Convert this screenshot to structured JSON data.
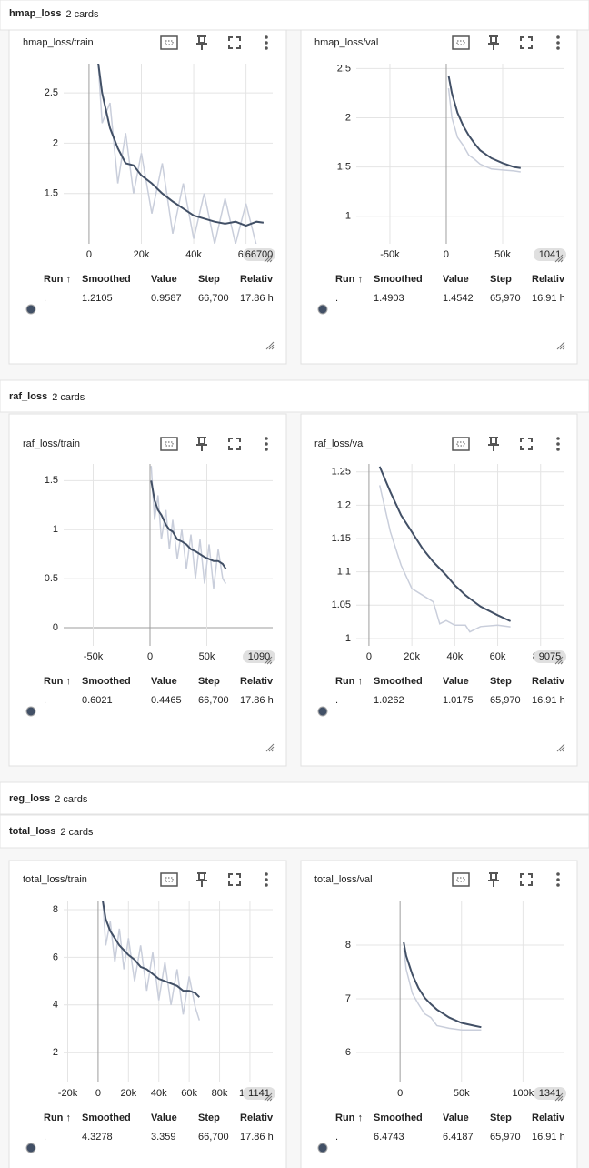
{
  "table_headers": [
    "Run ↑",
    "Smoothed",
    "Value",
    "Step",
    "Relativ"
  ],
  "sections": [
    {
      "title": "hmap_loss",
      "count": "2 cards",
      "cards": [
        {
          "title": "hmap_loss/train",
          "badge": "66700",
          "row": [
            ".",
            "1.2105",
            "0.9587",
            "66,700",
            "17.86 h"
          ],
          "chart": {
            "type": "line",
            "xlim": [
              -9700,
              70200
            ],
            "ylim": [
              1.0,
              2.79
            ],
            "xticks": [
              0,
              {
                "value": 20000,
                "label": "20k"
              },
              {
                "value": 40000,
                "label": "40k"
              },
              {
                "value": 60000,
                "label": "60k"
              }
            ],
            "yticks": [
              1.5,
              2,
              2.5
            ],
            "x": [
              3000,
              5000,
              8000,
              11000,
              14000,
              17000,
              20000,
              24000,
              28000,
              32000,
              36000,
              40000,
              44000,
              48000,
              52000,
              56000,
              60000,
              64000,
              66700
            ],
            "series": [
              {
                "color": "#c9cedb",
                "values": [
                  3.0,
                  2.2,
                  2.4,
                  1.6,
                  2.1,
                  1.5,
                  1.9,
                  1.3,
                  1.8,
                  1.1,
                  1.6,
                  1.05,
                  1.5,
                  1.0,
                  1.45,
                  1.0,
                  1.4,
                  0.98,
                  0.96
                ]
              },
              {
                "color": "#425066",
                "values": [
                  2.9,
                  2.5,
                  2.15,
                  1.95,
                  1.8,
                  1.78,
                  1.68,
                  1.6,
                  1.5,
                  1.42,
                  1.35,
                  1.28,
                  1.25,
                  1.22,
                  1.2,
                  1.22,
                  1.18,
                  1.22,
                  1.21
                ]
              }
            ]
          }
        },
        {
          "title": "hmap_loss/val",
          "badge": "1041",
          "row": [
            ".",
            "1.4903",
            "1.4542",
            "65,970",
            "16.91 h"
          ],
          "chart": {
            "type": "line",
            "xlim": [
              -79800,
              104000
            ],
            "ylim": [
              0.72,
              2.55
            ],
            "xticks": [
              {
                "value": -50000,
                "label": "-50k"
              },
              0,
              {
                "value": 50000,
                "label": "50k"
              }
            ],
            "yticks": [
              1,
              1.5,
              2,
              2.5
            ],
            "x": [
              2000,
              5000,
              10000,
              15000,
              20000,
              25000,
              30000,
              40000,
              50000,
              60000,
              65970
            ],
            "series": [
              {
                "color": "#c9cedb",
                "values": [
                  2.3,
                  2.0,
                  1.8,
                  1.72,
                  1.62,
                  1.58,
                  1.53,
                  1.48,
                  1.47,
                  1.46,
                  1.45
                ]
              },
              {
                "color": "#425066",
                "values": [
                  2.43,
                  2.25,
                  2.05,
                  1.92,
                  1.82,
                  1.74,
                  1.67,
                  1.59,
                  1.54,
                  1.5,
                  1.49
                ]
              }
            ]
          }
        }
      ]
    },
    {
      "title": "raf_loss",
      "count": "2 cards",
      "cards": [
        {
          "title": "raf_loss/train",
          "badge": "1090",
          "row": [
            ".",
            "0.6021",
            "0.4465",
            "66,700",
            "17.86 h"
          ],
          "chart": {
            "type": "line",
            "xlim": [
              -76000,
              108000
            ],
            "ylim": [
              -0.185,
              1.67
            ],
            "xticks": [
              {
                "value": -50000,
                "label": "-50k"
              },
              0,
              {
                "value": 50000,
                "label": "50k"
              }
            ],
            "yticks": [
              0,
              0.5,
              1,
              1.5
            ],
            "x": [
              1000,
              4000,
              7000,
              10000,
              14000,
              17000,
              20000,
              24000,
              28000,
              32000,
              36000,
              40000,
              44000,
              48000,
              52000,
              56000,
              60000,
              64000,
              66700
            ],
            "series": [
              {
                "color": "#c9cedb",
                "values": [
                  1.65,
                  1.1,
                  1.35,
                  0.9,
                  1.2,
                  0.8,
                  1.1,
                  0.7,
                  1.0,
                  0.6,
                  0.95,
                  0.5,
                  0.9,
                  0.45,
                  0.85,
                  0.4,
                  0.8,
                  0.5,
                  0.45
                ]
              },
              {
                "color": "#425066",
                "values": [
                  1.5,
                  1.3,
                  1.2,
                  1.15,
                  1.05,
                  1.0,
                  0.98,
                  0.9,
                  0.88,
                  0.85,
                  0.8,
                  0.78,
                  0.75,
                  0.72,
                  0.7,
                  0.68,
                  0.68,
                  0.65,
                  0.6
                ]
              }
            ]
          }
        },
        {
          "title": "raf_loss/val",
          "badge": "9075",
          "row": [
            ".",
            "1.0262",
            "1.0175",
            "65,970",
            "16.91 h"
          ],
          "chart": {
            "type": "line",
            "xlim": [
              -5900,
              90700
            ],
            "ylim": [
              0.989,
              1.262
            ],
            "xticks": [
              0,
              {
                "value": 20000,
                "label": "20k"
              },
              {
                "value": 40000,
                "label": "40k"
              },
              {
                "value": 60000,
                "label": "60k"
              },
              {
                "value": 80000,
                "label": "80k"
              }
            ],
            "yticks": [
              1,
              1.05,
              1.1,
              1.15,
              1.2,
              1.25
            ],
            "x": [
              5000,
              10000,
              15000,
              20000,
              25000,
              30000,
              33000,
              36000,
              40000,
              45000,
              47000,
              52000,
              60000,
              65970
            ],
            "series": [
              {
                "color": "#c9cedb",
                "values": [
                  1.23,
                  1.16,
                  1.11,
                  1.075,
                  1.065,
                  1.055,
                  1.022,
                  1.027,
                  1.02,
                  1.02,
                  1.01,
                  1.018,
                  1.02,
                  1.0175
                ]
              },
              {
                "color": "#425066",
                "values": [
                  1.258,
                  1.22,
                  1.185,
                  1.16,
                  1.135,
                  1.115,
                  1.105,
                  1.095,
                  1.08,
                  1.065,
                  1.06,
                  1.048,
                  1.035,
                  1.026
                ]
              }
            ]
          }
        }
      ]
    },
    {
      "title": "reg_loss",
      "count": "2 cards",
      "cards": []
    },
    {
      "title": "total_loss",
      "count": "2 cards",
      "cards": [
        {
          "title": "total_loss/train",
          "badge": "1141",
          "row": [
            ".",
            "4.3278",
            "3.359",
            "66,700",
            "17.86 h"
          ],
          "chart": {
            "type": "line",
            "xlim": [
              -22700,
              115000
            ],
            "ylim": [
              0.75,
              8.38
            ],
            "xticks": [
              {
                "value": -20000,
                "label": "-20k"
              },
              0,
              {
                "value": 20000,
                "label": "20k"
              },
              {
                "value": 40000,
                "label": "40k"
              },
              {
                "value": 60000,
                "label": "60k"
              },
              {
                "value": 80000,
                "label": "80k"
              },
              {
                "value": 100000,
                "label": "100k"
              }
            ],
            "yticks": [
              2,
              4,
              6,
              8
            ],
            "x": [
              3000,
              5000,
              8000,
              11000,
              14000,
              17000,
              20000,
              24000,
              28000,
              32000,
              36000,
              40000,
              44000,
              48000,
              52000,
              56000,
              60000,
              64000,
              66700
            ],
            "series": [
              {
                "color": "#c9cedb",
                "values": [
                  8.5,
                  6.5,
                  7.5,
                  5.8,
                  7.2,
                  5.5,
                  6.8,
                  5.0,
                  6.5,
                  4.6,
                  6.2,
                  4.2,
                  5.8,
                  4.0,
                  5.5,
                  3.6,
                  5.2,
                  3.9,
                  3.36
                ]
              },
              {
                "color": "#425066",
                "values": [
                  8.4,
                  7.6,
                  7.1,
                  6.8,
                  6.5,
                  6.3,
                  6.1,
                  5.9,
                  5.6,
                  5.5,
                  5.3,
                  5.1,
                  5.0,
                  4.9,
                  4.8,
                  4.6,
                  4.6,
                  4.5,
                  4.33
                ]
              }
            ]
          }
        },
        {
          "title": "total_loss/val",
          "badge": "1341",
          "row": [
            ".",
            "6.4743",
            "6.4187",
            "65,970",
            "16.91 h"
          ],
          "chart": {
            "type": "line",
            "xlim": [
              -35600,
              133000
            ],
            "ylim": [
              5.44,
              8.83
            ],
            "xticks": [
              0,
              {
                "value": 50000,
                "label": "50k"
              },
              {
                "value": 100000,
                "label": "100k"
              }
            ],
            "yticks": [
              6,
              7,
              8
            ],
            "x": [
              3000,
              5000,
              10000,
              15000,
              20000,
              25000,
              30000,
              40000,
              50000,
              60000,
              65970
            ],
            "series": [
              {
                "color": "#c9cedb",
                "values": [
                  7.95,
                  7.55,
                  7.1,
                  6.9,
                  6.72,
                  6.65,
                  6.5,
                  6.45,
                  6.42,
                  6.42,
                  6.42
                ]
              },
              {
                "color": "#425066",
                "values": [
                  8.05,
                  7.8,
                  7.45,
                  7.2,
                  7.02,
                  6.9,
                  6.8,
                  6.65,
                  6.55,
                  6.5,
                  6.47
                ]
              }
            ]
          }
        }
      ]
    }
  ]
}
